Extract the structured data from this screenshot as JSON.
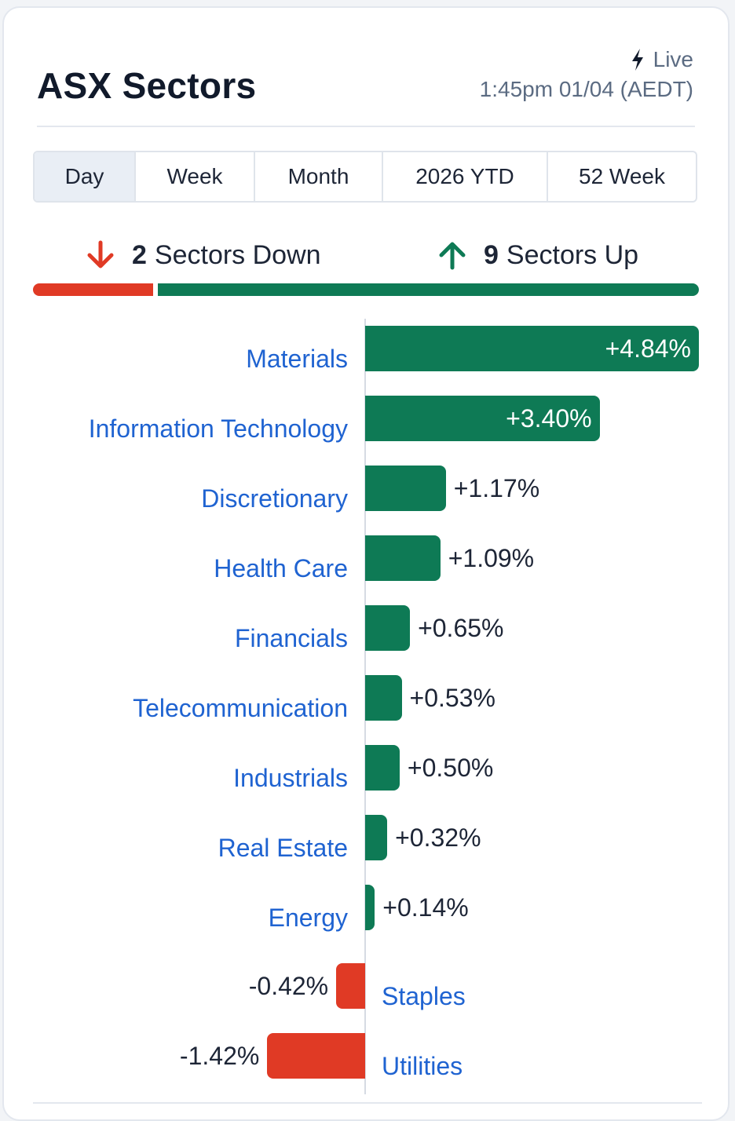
{
  "header": {
    "title": "ASX Sectors",
    "live_label": "Live",
    "timestamp": "1:45pm 01/04 (AEDT)"
  },
  "tabs": [
    {
      "label": "Day",
      "active": true
    },
    {
      "label": "Week",
      "active": false
    },
    {
      "label": "Month",
      "active": false
    },
    {
      "label": "2026 YTD",
      "active": false
    },
    {
      "label": "52 Week",
      "active": false
    }
  ],
  "summary": {
    "down_count": "2",
    "down_label": "Sectors Down",
    "up_count": "9",
    "up_label": "Sectors Up",
    "down_color": "#e03a25",
    "up_color": "#0e7a55"
  },
  "chart_data": {
    "type": "bar",
    "orientation": "horizontal",
    "categories": [
      "Materials",
      "Information Technology",
      "Discretionary",
      "Health Care",
      "Financials",
      "Telecommunication",
      "Industrials",
      "Real Estate",
      "Energy",
      "Staples",
      "Utilities"
    ],
    "values": [
      4.84,
      3.4,
      1.17,
      1.09,
      0.65,
      0.53,
      0.5,
      0.32,
      0.14,
      -0.42,
      -1.42
    ],
    "value_labels": [
      "+4.84%",
      "+3.40%",
      "+1.17%",
      "+1.09%",
      "+0.65%",
      "+0.53%",
      "+0.50%",
      "+0.32%",
      "+0.14%",
      "-0.42%",
      "-1.42%"
    ],
    "positive_color": "#0e7a55",
    "negative_color": "#e03a25",
    "title": "",
    "xlabel": "",
    "ylabel": ""
  }
}
